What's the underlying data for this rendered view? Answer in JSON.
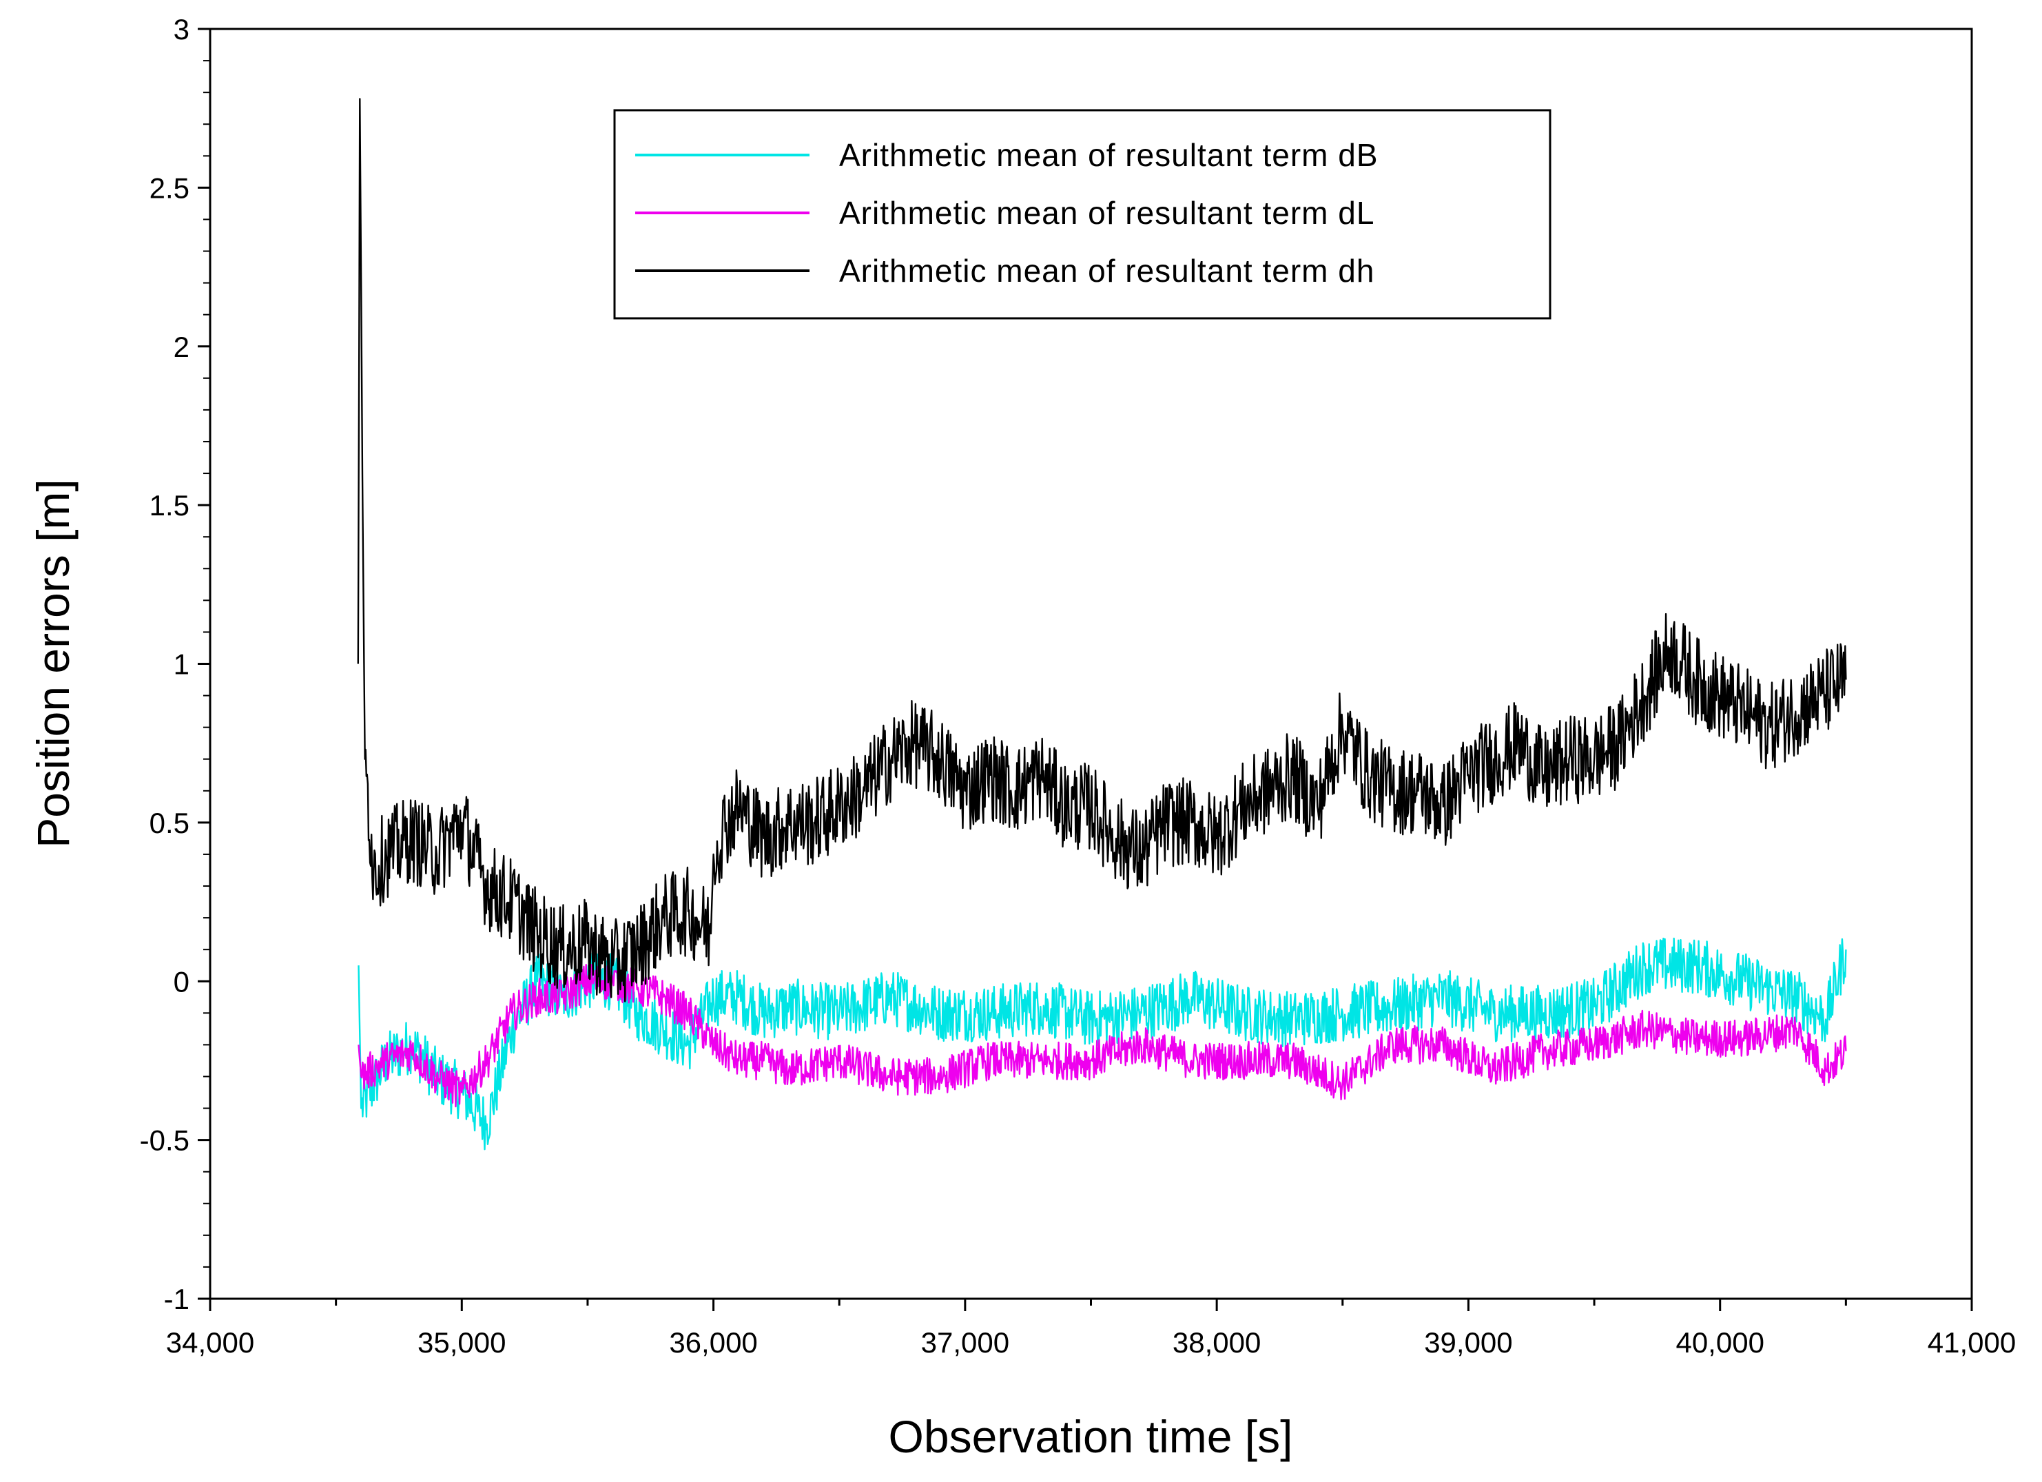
{
  "chart_data": {
    "type": "line",
    "xlabel": "Observation time [s]",
    "ylabel": "Position errors [m]",
    "xlim": [
      34000,
      41000
    ],
    "ylim": [
      -1,
      3
    ],
    "x_ticks": [
      34000,
      35000,
      36000,
      37000,
      38000,
      39000,
      40000,
      41000
    ],
    "x_tick_labels": [
      "34,000",
      "35,000",
      "36,000",
      "37,000",
      "38,000",
      "39,000",
      "40,000",
      "41,000"
    ],
    "y_ticks": [
      -1,
      -0.5,
      0,
      0.5,
      1,
      1.5,
      2,
      2.5,
      3
    ],
    "y_tick_labels": [
      "-1",
      "-0.5",
      "0",
      "0.5",
      "1",
      "1.5",
      "2",
      "2.5",
      "3"
    ],
    "grid": false,
    "legend_position": "top-center",
    "series": [
      {
        "name": "Arithmetic mean of resultant term dB",
        "color": "#00e5e5",
        "x": [
          34590,
          34600,
          34700,
          34800,
          34900,
          35000,
          35100,
          35200,
          35300,
          35400,
          35500,
          35600,
          35700,
          35800,
          35900,
          36000,
          36100,
          36200,
          36300,
          36500,
          36700,
          36900,
          37100,
          37300,
          37500,
          37700,
          37900,
          38100,
          38300,
          38500,
          38700,
          38900,
          39100,
          39300,
          39500,
          39700,
          39900,
          40100,
          40300,
          40420,
          40500
        ],
        "y": [
          0.05,
          -0.4,
          -0.25,
          -0.2,
          -0.3,
          -0.35,
          -0.45,
          -0.15,
          0.0,
          -0.05,
          0.0,
          0.0,
          -0.1,
          -0.15,
          -0.2,
          -0.05,
          -0.05,
          -0.1,
          -0.08,
          -0.1,
          -0.05,
          -0.1,
          -0.1,
          -0.08,
          -0.12,
          -0.1,
          -0.05,
          -0.1,
          -0.12,
          -0.1,
          -0.08,
          -0.05,
          -0.1,
          -0.1,
          -0.08,
          0.05,
          0.05,
          0.0,
          -0.05,
          -0.12,
          0.1
        ]
      },
      {
        "name": "Arithmetic mean of resultant term dL",
        "color": "#ee00ee",
        "x": [
          34590,
          34600,
          34700,
          34800,
          34900,
          35000,
          35100,
          35200,
          35300,
          35400,
          35500,
          35600,
          35700,
          35800,
          35900,
          36000,
          36100,
          36200,
          36300,
          36500,
          36700,
          36900,
          37100,
          37300,
          37500,
          37700,
          37900,
          38100,
          38300,
          38500,
          38700,
          38900,
          39100,
          39300,
          39500,
          39700,
          39900,
          40100,
          40300,
          40420,
          40500
        ],
        "y": [
          -0.2,
          -0.3,
          -0.25,
          -0.22,
          -0.3,
          -0.35,
          -0.25,
          -0.1,
          -0.05,
          -0.05,
          0.0,
          0.0,
          -0.02,
          -0.05,
          -0.1,
          -0.2,
          -0.25,
          -0.25,
          -0.28,
          -0.25,
          -0.3,
          -0.3,
          -0.25,
          -0.25,
          -0.25,
          -0.2,
          -0.25,
          -0.25,
          -0.25,
          -0.32,
          -0.2,
          -0.2,
          -0.28,
          -0.22,
          -0.2,
          -0.15,
          -0.18,
          -0.18,
          -0.15,
          -0.28,
          -0.22
        ]
      },
      {
        "name": "Arithmetic mean of resultant term dh",
        "color": "#000000",
        "x": [
          34588,
          34595,
          34605,
          34615,
          34650,
          34700,
          34800,
          34900,
          35000,
          35100,
          35200,
          35300,
          35400,
          35500,
          35600,
          35700,
          35800,
          35900,
          35990,
          36000,
          36050,
          36100,
          36200,
          36300,
          36400,
          36500,
          36600,
          36700,
          36800,
          36900,
          37000,
          37100,
          37200,
          37300,
          37400,
          37500,
          37600,
          37700,
          37800,
          37900,
          38000,
          38100,
          38200,
          38300,
          38400,
          38500,
          38600,
          38700,
          38800,
          38900,
          39000,
          39100,
          39200,
          39300,
          39400,
          39500,
          39600,
          39700,
          39800,
          39900,
          40000,
          40100,
          40200,
          40300,
          40400,
          40500
        ],
        "y": [
          1.0,
          2.78,
          1.6,
          0.7,
          0.35,
          0.4,
          0.45,
          0.4,
          0.5,
          0.3,
          0.25,
          0.15,
          0.1,
          0.12,
          0.05,
          0.1,
          0.2,
          0.22,
          0.15,
          0.4,
          0.5,
          0.55,
          0.45,
          0.5,
          0.5,
          0.55,
          0.6,
          0.7,
          0.75,
          0.7,
          0.6,
          0.65,
          0.6,
          0.65,
          0.55,
          0.55,
          0.45,
          0.4,
          0.5,
          0.5,
          0.45,
          0.55,
          0.6,
          0.65,
          0.55,
          0.8,
          0.65,
          0.6,
          0.6,
          0.55,
          0.65,
          0.7,
          0.75,
          0.65,
          0.7,
          0.7,
          0.75,
          0.9,
          1.05,
          0.95,
          0.9,
          0.85,
          0.8,
          0.85,
          0.9,
          0.95
        ]
      }
    ]
  }
}
